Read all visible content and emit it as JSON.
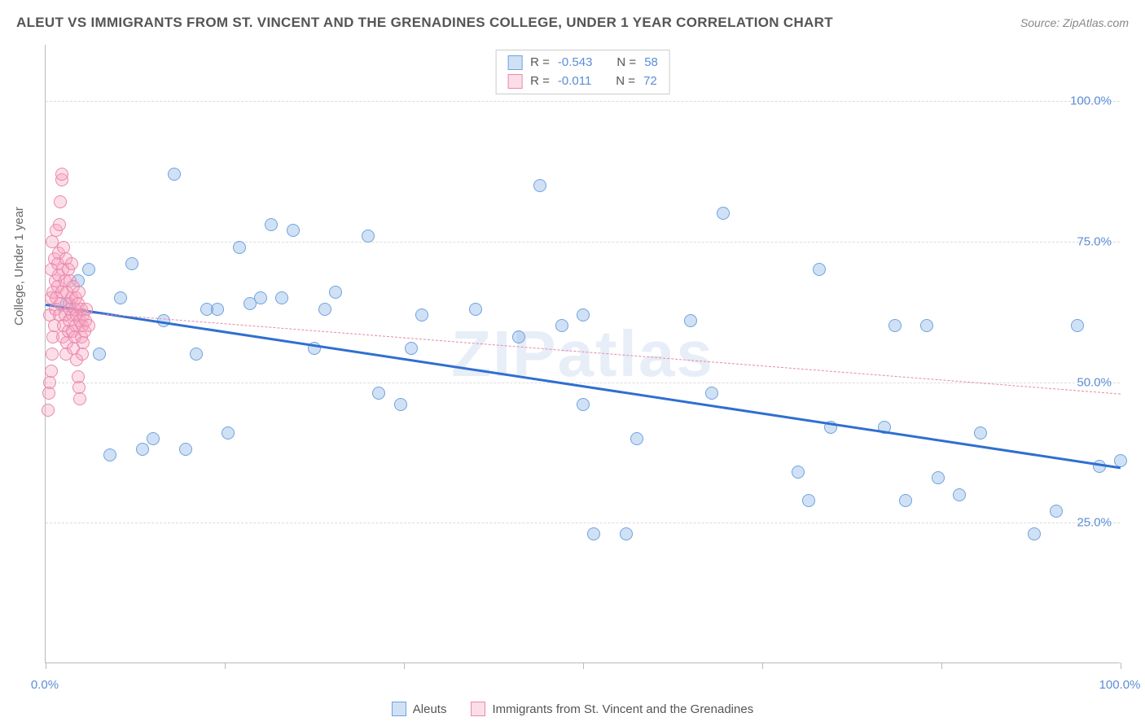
{
  "title": "ALEUT VS IMMIGRANTS FROM ST. VINCENT AND THE GRENADINES COLLEGE, UNDER 1 YEAR CORRELATION CHART",
  "source_label": "Source:",
  "source_value": "ZipAtlas.com",
  "watermark": "ZIPatlas",
  "ylabel": "College, Under 1 year",
  "chart": {
    "type": "scatter",
    "xlim": [
      0,
      100
    ],
    "ylim": [
      0,
      110
    ],
    "ytick_values": [
      25,
      50,
      75,
      100
    ],
    "ytick_labels": [
      "25.0%",
      "50.0%",
      "75.0%",
      "100.0%"
    ],
    "xtick_values": [
      0,
      16.67,
      33.33,
      50,
      66.67,
      83.33,
      100
    ],
    "xtick_endlabels": {
      "left": "0.0%",
      "right": "100.0%"
    },
    "background_color": "#ffffff",
    "grid_color": "#dddddd",
    "axis_color": "#bbbbbb",
    "point_radius": 8,
    "series": [
      {
        "name": "Aleuts",
        "fill": "rgba(120,170,230,0.35)",
        "stroke": "#6fa3dd",
        "stats": {
          "R": "-0.543",
          "N": "58"
        },
        "trend": {
          "x1": 0,
          "y1": 64,
          "x2": 100,
          "y2": 35,
          "color": "#2f6fd0",
          "width": 3,
          "dash": "solid"
        },
        "points": [
          [
            2,
            64
          ],
          [
            3,
            68
          ],
          [
            4,
            70
          ],
          [
            5,
            55
          ],
          [
            6,
            37
          ],
          [
            7,
            65
          ],
          [
            8,
            71
          ],
          [
            9,
            38
          ],
          [
            10,
            40
          ],
          [
            11,
            61
          ],
          [
            12,
            87
          ],
          [
            13,
            38
          ],
          [
            14,
            55
          ],
          [
            15,
            63
          ],
          [
            16,
            63
          ],
          [
            17,
            41
          ],
          [
            18,
            74
          ],
          [
            19,
            64
          ],
          [
            20,
            65
          ],
          [
            21,
            78
          ],
          [
            22,
            65
          ],
          [
            23,
            77
          ],
          [
            25,
            56
          ],
          [
            26,
            63
          ],
          [
            27,
            66
          ],
          [
            30,
            76
          ],
          [
            31,
            48
          ],
          [
            33,
            46
          ],
          [
            34,
            56
          ],
          [
            35,
            62
          ],
          [
            40,
            63
          ],
          [
            44,
            58
          ],
          [
            46,
            85
          ],
          [
            48,
            60
          ],
          [
            50,
            46
          ],
          [
            50,
            62
          ],
          [
            51,
            23
          ],
          [
            54,
            23
          ],
          [
            55,
            40
          ],
          [
            60,
            61
          ],
          [
            62,
            48
          ],
          [
            63,
            80
          ],
          [
            70,
            34
          ],
          [
            71,
            29
          ],
          [
            72,
            70
          ],
          [
            73,
            42
          ],
          [
            78,
            42
          ],
          [
            79,
            60
          ],
          [
            80,
            29
          ],
          [
            82,
            60
          ],
          [
            83,
            33
          ],
          [
            85,
            30
          ],
          [
            87,
            41
          ],
          [
            92,
            23
          ],
          [
            94,
            27
          ],
          [
            96,
            60
          ],
          [
            98,
            35
          ],
          [
            100,
            36
          ]
        ]
      },
      {
        "name": "Immigrants from St. Vincent and the Grenadines",
        "fill": "rgba(245,160,190,0.35)",
        "stroke": "#e989ad",
        "stats": {
          "R": "-0.011",
          "N": "72"
        },
        "trend": {
          "x1": 0,
          "y1": 63,
          "x2": 100,
          "y2": 48,
          "color": "#e58aa8",
          "width": 1,
          "dash": "6,5"
        },
        "points": [
          [
            0.2,
            45
          ],
          [
            0.3,
            48
          ],
          [
            0.4,
            50
          ],
          [
            0.4,
            62
          ],
          [
            0.5,
            52
          ],
          [
            0.5,
            65
          ],
          [
            0.5,
            70
          ],
          [
            0.6,
            55
          ],
          [
            0.6,
            75
          ],
          [
            0.7,
            58
          ],
          [
            0.7,
            66
          ],
          [
            0.8,
            60
          ],
          [
            0.8,
            72
          ],
          [
            0.9,
            63
          ],
          [
            0.9,
            68
          ],
          [
            1.0,
            65
          ],
          [
            1.0,
            77
          ],
          [
            1.1,
            67
          ],
          [
            1.1,
            71
          ],
          [
            1.2,
            69
          ],
          [
            1.2,
            73
          ],
          [
            1.3,
            62
          ],
          [
            1.3,
            78
          ],
          [
            1.4,
            64
          ],
          [
            1.4,
            82
          ],
          [
            1.5,
            66
          ],
          [
            1.5,
            86
          ],
          [
            1.5,
            87
          ],
          [
            1.6,
            58
          ],
          [
            1.6,
            70
          ],
          [
            1.7,
            60
          ],
          [
            1.7,
            74
          ],
          [
            1.8,
            62
          ],
          [
            1.8,
            68
          ],
          [
            1.9,
            55
          ],
          [
            1.9,
            72
          ],
          [
            2.0,
            57
          ],
          [
            2.0,
            66
          ],
          [
            2.1,
            59
          ],
          [
            2.1,
            70
          ],
          [
            2.2,
            61
          ],
          [
            2.2,
            64
          ],
          [
            2.3,
            63
          ],
          [
            2.3,
            68
          ],
          [
            2.4,
            65
          ],
          [
            2.4,
            71
          ],
          [
            2.5,
            62
          ],
          [
            2.5,
            59
          ],
          [
            2.6,
            56
          ],
          [
            2.6,
            67
          ],
          [
            2.7,
            58
          ],
          [
            2.7,
            63
          ],
          [
            2.8,
            60
          ],
          [
            2.8,
            65
          ],
          [
            2.9,
            62
          ],
          [
            2.9,
            54
          ],
          [
            3.0,
            51
          ],
          [
            3.0,
            64
          ],
          [
            3.1,
            49
          ],
          [
            3.1,
            66
          ],
          [
            3.2,
            47
          ],
          [
            3.2,
            61
          ],
          [
            3.3,
            63
          ],
          [
            3.3,
            58
          ],
          [
            3.4,
            60
          ],
          [
            3.4,
            55
          ],
          [
            3.5,
            57
          ],
          [
            3.5,
            62
          ],
          [
            3.6,
            59
          ],
          [
            3.7,
            61
          ],
          [
            3.8,
            63
          ],
          [
            4.0,
            60
          ]
        ]
      }
    ],
    "legend_swatch_size": 18
  },
  "stats_labels": {
    "R": "R =",
    "N": "N ="
  }
}
